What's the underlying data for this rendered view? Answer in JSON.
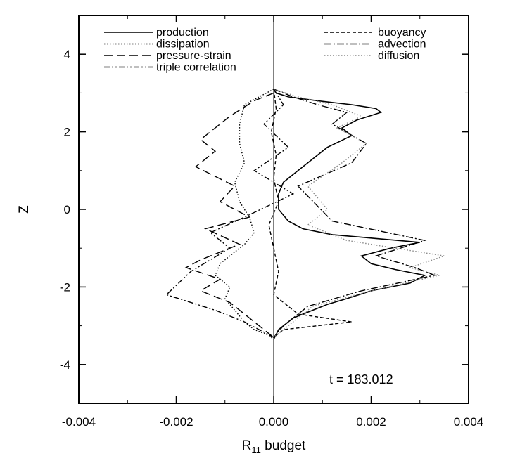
{
  "chart_data": {
    "type": "line",
    "title": "",
    "xlabel": "R",
    "xlabel_subscript": "11",
    "xlabel_suffix": " budget",
    "ylabel": "Z",
    "xlim": [
      -0.004,
      0.004
    ],
    "ylim": [
      -5,
      5
    ],
    "xticks": [
      "-0.004",
      "-0.002",
      "0.000",
      "0.002",
      "0.004"
    ],
    "yticks": [
      "-4",
      "-2",
      "0",
      "2",
      "4"
    ],
    "xtick_values": [
      -0.004,
      -0.002,
      0.0,
      0.002,
      0.004
    ],
    "ytick_values": [
      -4,
      -2,
      0,
      2,
      4
    ],
    "grid": false,
    "annotation": "t = 183.012",
    "legend_left": [
      "production",
      "dissipation",
      "pressure-strain",
      "triple correlation"
    ],
    "legend_right": [
      "buoyancy",
      "advection",
      "diffusion"
    ],
    "series": [
      {
        "name": "production",
        "style": "solid",
        "color": "#000000",
        "x": [
          0,
          5e-05,
          0.0003,
          0.0009,
          0.0016,
          0.0021,
          0.0022,
          0.0017,
          0.0014,
          0.0016,
          0.0011,
          0.0008,
          0.0005,
          0.0002,
          0.0001,
          0.0001,
          0.0003,
          0.0006,
          0.0012,
          0.0021,
          0.003,
          0.0024,
          0.0018,
          0.002,
          0.0025,
          0.0031,
          0.0028,
          0.002,
          0.0015,
          0.0011,
          0.0008,
          0.0004,
          0.0001,
          0
        ],
        "y": [
          3.1,
          3.0,
          2.9,
          2.8,
          2.7,
          2.6,
          2.5,
          2.3,
          2.1,
          1.9,
          1.6,
          1.3,
          1.0,
          0.7,
          0.4,
          0.0,
          -0.3,
          -0.5,
          -0.65,
          -0.75,
          -0.85,
          -1.0,
          -1.2,
          -1.4,
          -1.55,
          -1.7,
          -1.9,
          -2.1,
          -2.3,
          -2.45,
          -2.6,
          -2.8,
          -3.1,
          -3.35
        ]
      },
      {
        "name": "dissipation",
        "style": "dotted",
        "color": "#000000",
        "x": [
          0,
          -0.0003,
          -0.0006,
          -0.0007,
          -0.0007,
          -0.0006,
          -0.0008,
          -0.0007,
          -0.0005,
          -0.0004,
          -0.0006,
          -0.0008,
          -0.0011,
          -0.0012,
          -0.0009,
          -0.001,
          -0.0008,
          -0.0006,
          -0.0004,
          -0.0001,
          0
        ],
        "y": [
          3.1,
          2.9,
          2.7,
          2.2,
          1.7,
          1.2,
          0.7,
          0.2,
          -0.2,
          -0.6,
          -0.9,
          -1.1,
          -1.4,
          -1.7,
          -2.0,
          -2.3,
          -2.6,
          -2.9,
          -3.1,
          -3.25,
          -3.35
        ]
      },
      {
        "name": "pressure-strain",
        "style": "dashed",
        "color": "#000000",
        "x": [
          0,
          -0.0004,
          -0.0009,
          -0.0015,
          -0.0012,
          -0.0016,
          -0.0008,
          -0.0011,
          -0.0005,
          -0.0014,
          -0.0007,
          -0.0015,
          -0.0018,
          -0.0011,
          -0.0015,
          -0.0009,
          -0.0006,
          -0.0003,
          0
        ],
        "y": [
          3.0,
          2.8,
          2.4,
          1.8,
          1.5,
          1.1,
          0.6,
          0.2,
          -0.2,
          -0.5,
          -0.9,
          -1.3,
          -1.5,
          -1.8,
          -2.1,
          -2.4,
          -2.7,
          -3.0,
          -3.3
        ]
      },
      {
        "name": "triple correlation",
        "style": "dash-dot-dot",
        "color": "#000000",
        "x": [
          0,
          0.0002,
          -0.0002,
          0.0003,
          -0.0004,
          0.0004,
          -0.0006,
          -0.0013,
          -0.0009,
          -0.0017,
          -0.0022,
          -0.0012,
          -0.0006,
          -0.0003,
          0
        ],
        "y": [
          3.1,
          2.7,
          2.2,
          1.6,
          1.0,
          0.4,
          -0.2,
          -0.6,
          -1.0,
          -1.6,
          -2.2,
          -2.6,
          -2.9,
          -3.1,
          -3.3
        ]
      },
      {
        "name": "buoyancy",
        "style": "short-dashed",
        "color": "#000000",
        "x": [
          0,
          5e-05,
          -5e-05,
          5e-05,
          0,
          0.0001,
          -0.0001,
          0,
          0.0001,
          0,
          0.0005,
          0.0016,
          0.0002,
          0
        ],
        "y": [
          3.1,
          2.6,
          2.0,
          1.4,
          0.8,
          0.2,
          -0.4,
          -1.0,
          -1.6,
          -2.2,
          -2.7,
          -2.9,
          -3.1,
          -3.3
        ]
      },
      {
        "name": "advection",
        "style": "dash-dot",
        "color": "#000000",
        "x": [
          0,
          0.0004,
          0.0009,
          0.0015,
          0.0012,
          0.0019,
          0.0016,
          0.0005,
          0.0012,
          0.0031,
          0.0021,
          0.0029,
          0.0033,
          0.0018,
          0.0007,
          0.0002,
          0
        ],
        "y": [
          3.1,
          2.9,
          2.7,
          2.5,
          2.2,
          1.7,
          1.2,
          0.6,
          -0.3,
          -0.8,
          -1.2,
          -1.5,
          -1.7,
          -2.1,
          -2.5,
          -3.0,
          -3.3
        ]
      },
      {
        "name": "diffusion",
        "style": "dotted",
        "color": "#888888",
        "x": [
          0,
          0.0005,
          0.0012,
          0.0018,
          0.0013,
          0.0019,
          0.0014,
          0.0007,
          0.0011,
          0.0007,
          0.0015,
          0.0025,
          0.0035,
          0.0028,
          0.0034,
          0.002,
          0.0008,
          0.0003,
          0
        ],
        "y": [
          3.1,
          2.9,
          2.7,
          2.4,
          2.1,
          1.7,
          1.2,
          0.6,
          0.0,
          -0.4,
          -0.8,
          -1.0,
          -1.2,
          -1.5,
          -1.7,
          -2.1,
          -2.5,
          -3.0,
          -3.3
        ]
      }
    ]
  }
}
